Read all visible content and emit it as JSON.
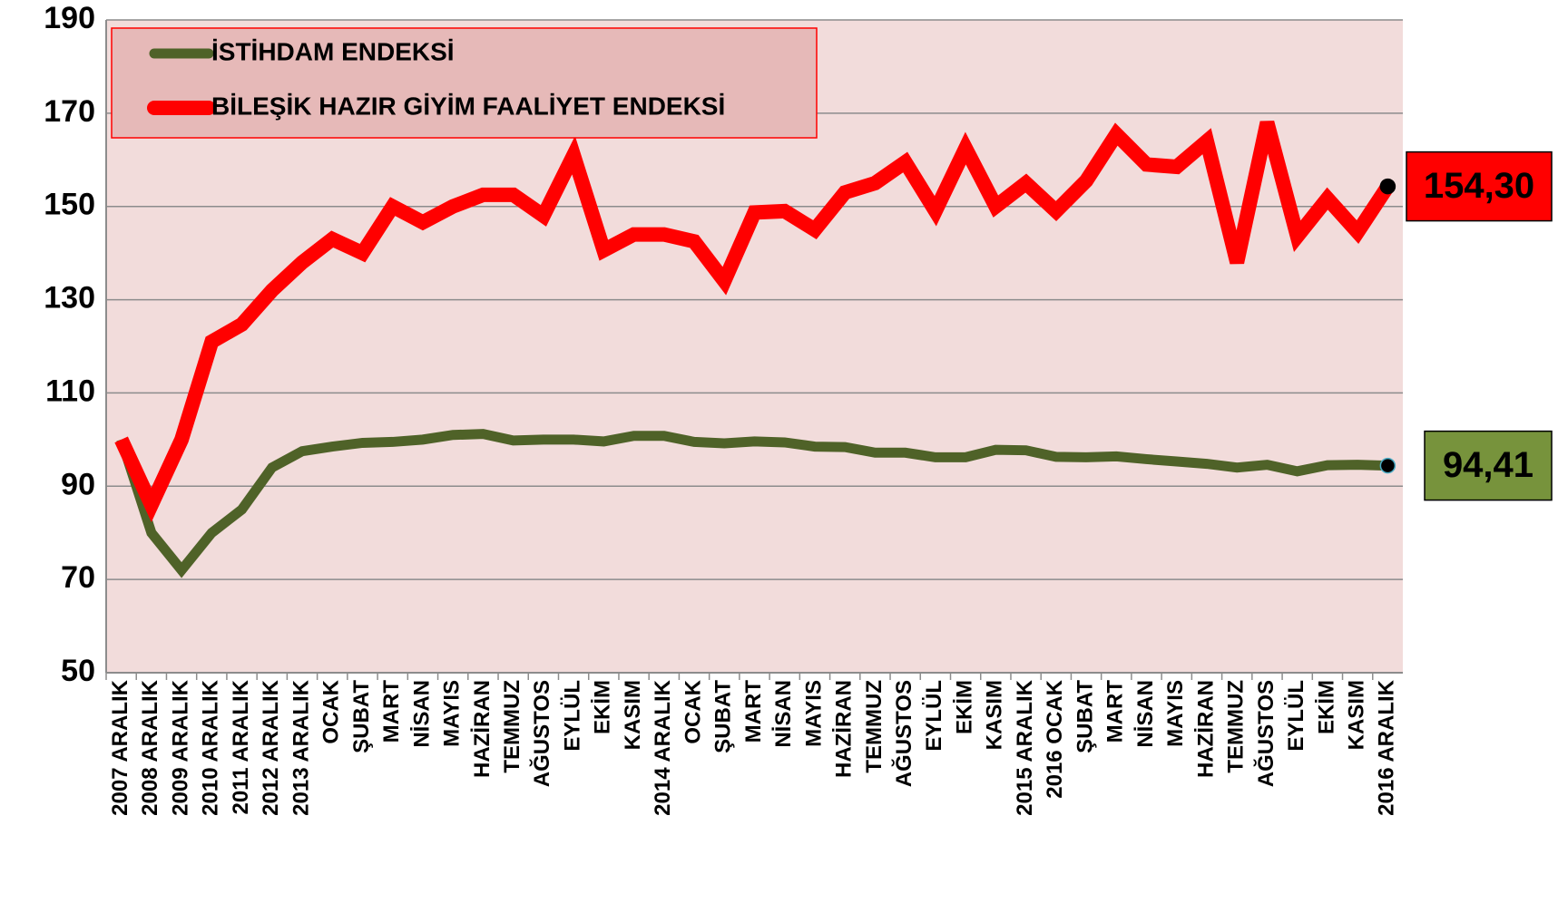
{
  "chart_data": {
    "type": "line",
    "categories": [
      "2007 ARALIK",
      "2008 ARALIK",
      "2009 ARALIK",
      "2010 ARALIK",
      "2011 ARALIK",
      "2012 ARALIK",
      "2013 ARALIK",
      "OCAK",
      "ŞUBAT",
      "MART",
      "NİSAN",
      "MAYIS",
      "HAZİRAN",
      "TEMMUZ",
      "AĞUSTOS",
      "EYLÜL",
      "EKİM",
      "KASIM",
      "2014 ARALIK",
      "OCAK",
      "ŞUBAT",
      "MART",
      "NİSAN",
      "MAYIS",
      "HAZİRAN",
      "TEMMUZ",
      "AĞUSTOS",
      "EYLÜL",
      "EKİM",
      "KASIM",
      "2015 ARALIK",
      "2016 OCAK",
      "ŞUBAT",
      "MART",
      "NİSAN",
      "MAYIS",
      "HAZİRAN",
      "TEMMUZ",
      "AĞUSTOS",
      "EYLÜL",
      "EKİM",
      "KASIM",
      "2016 ARALIK"
    ],
    "series": [
      {
        "name": "İSTİHDAM ENDEKSİ",
        "color": "#4f6228",
        "label_color": "#77933c",
        "values": [
          100,
          80,
          72,
          80,
          85,
          94,
          97.5,
          98.5,
          99.3,
          99.5,
          100,
          101,
          101.2,
          99.8,
          100,
          100,
          99.6,
          100.8,
          100.8,
          99.5,
          99.2,
          99.6,
          99.4,
          98.5,
          98.4,
          97.2,
          97.2,
          96.2,
          96.2,
          97.8,
          97.7,
          96.3,
          96.2,
          96.4,
          95.8,
          95.3,
          94.8,
          94,
          94.6,
          93.2,
          94.5,
          94.6,
          94.41
        ],
        "value_labels": [
          null,
          null,
          null,
          null,
          null,
          null,
          null,
          null,
          null,
          null,
          null,
          null,
          null,
          null,
          null,
          null,
          null,
          null,
          null,
          null,
          null,
          null,
          null,
          null,
          null,
          null,
          null,
          null,
          null,
          null,
          null,
          null,
          null,
          null,
          null,
          null,
          null,
          null,
          null,
          null,
          null,
          null,
          "94,41"
        ]
      },
      {
        "name": "BİLEŞİK HAZIR GİYİM FAALİYET ENDEKSİ",
        "color": "#ff0000",
        "label_color": "#ff0000",
        "values": [
          100,
          86,
          100,
          121,
          124.7,
          132,
          138,
          143,
          140,
          150,
          146.6,
          150,
          152.5,
          152.5,
          148,
          161,
          140.6,
          144,
          144,
          142.5,
          134,
          148.7,
          149,
          145,
          153,
          155,
          159.5,
          149,
          162.5,
          150,
          155,
          149,
          155.5,
          165.5,
          159,
          158.5,
          164,
          138,
          168,
          143.6,
          151.7,
          144.5,
          154.3
        ],
        "value_labels": [
          null,
          null,
          null,
          null,
          null,
          null,
          null,
          null,
          null,
          null,
          null,
          null,
          null,
          null,
          null,
          null,
          null,
          null,
          null,
          null,
          null,
          null,
          null,
          null,
          null,
          null,
          null,
          null,
          null,
          null,
          null,
          null,
          null,
          null,
          null,
          null,
          null,
          null,
          null,
          null,
          null,
          null,
          "154,30"
        ]
      }
    ],
    "ylim": [
      50,
      190
    ],
    "yticks": [
      50,
      70,
      90,
      110,
      130,
      150,
      170,
      190
    ],
    "grid": true
  }
}
